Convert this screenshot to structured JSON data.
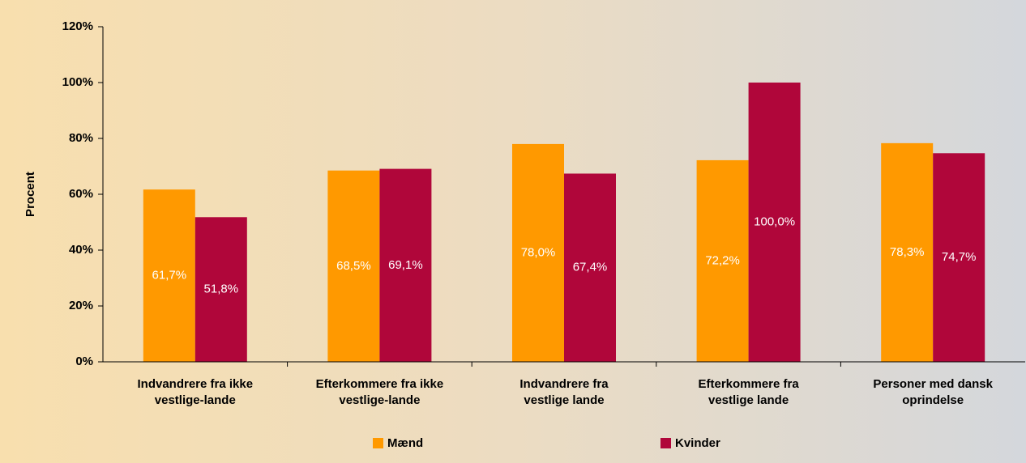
{
  "chart_data": {
    "type": "bar",
    "y_label": "Procent",
    "categories": [
      [
        "Indvandrere fra ikke",
        "vestlige-lande"
      ],
      [
        "Efterkommere fra ikke",
        "vestlige-lande"
      ],
      [
        "Indvandrere fra",
        "vestlige lande"
      ],
      [
        "Efterkommere fra",
        "vestlige lande"
      ],
      [
        "Personer med dansk",
        "oprindelse"
      ]
    ],
    "series": [
      {
        "name": "Mænd",
        "color": "#ff9900",
        "values": [
          61.7,
          68.5,
          78.0,
          72.2,
          78.3
        ],
        "value_labels": [
          "61,7%",
          "68,5%",
          "78,0%",
          "72,2%",
          "78,3%"
        ]
      },
      {
        "name": "Kvinder",
        "color": "#b0063a",
        "values": [
          51.8,
          69.1,
          67.4,
          100.0,
          74.7
        ],
        "value_labels": [
          "51,8%",
          "69,1%",
          "67,4%",
          "100,0%",
          "74,7%"
        ]
      }
    ],
    "ylim": [
      0,
      120
    ],
    "yticks": [
      {
        "value": 0,
        "label": "0%"
      },
      {
        "value": 20,
        "label": "20%"
      },
      {
        "value": 40,
        "label": "40%"
      },
      {
        "value": 60,
        "label": "60%"
      },
      {
        "value": 80,
        "label": "80%"
      },
      {
        "value": 100,
        "label": "100%"
      },
      {
        "value": 120,
        "label": "120%"
      }
    ],
    "grid": false
  }
}
